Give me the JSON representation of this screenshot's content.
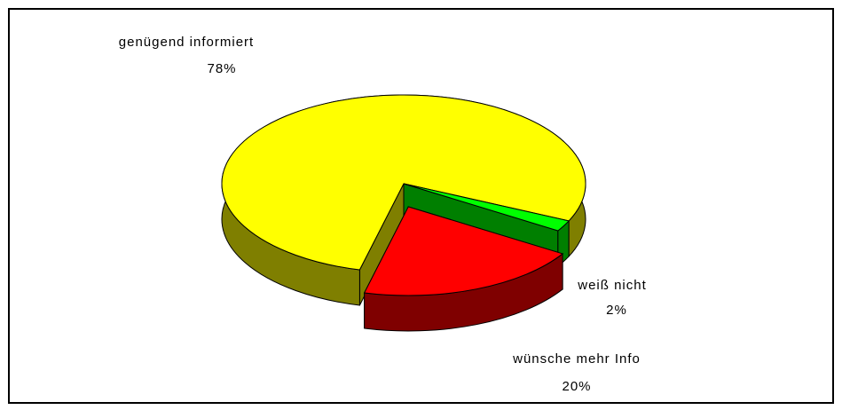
{
  "chart_data": {
    "type": "pie3d",
    "categories": [
      "genügend informiert",
      "weiß nicht",
      "wünsche mehr Info"
    ],
    "values": [
      78,
      2,
      20
    ],
    "value_labels": [
      "78%",
      "2%",
      "20%"
    ],
    "colors": [
      "#ffff00",
      "#00ff00",
      "#ff0000"
    ],
    "explode": [
      false,
      false,
      true
    ]
  }
}
